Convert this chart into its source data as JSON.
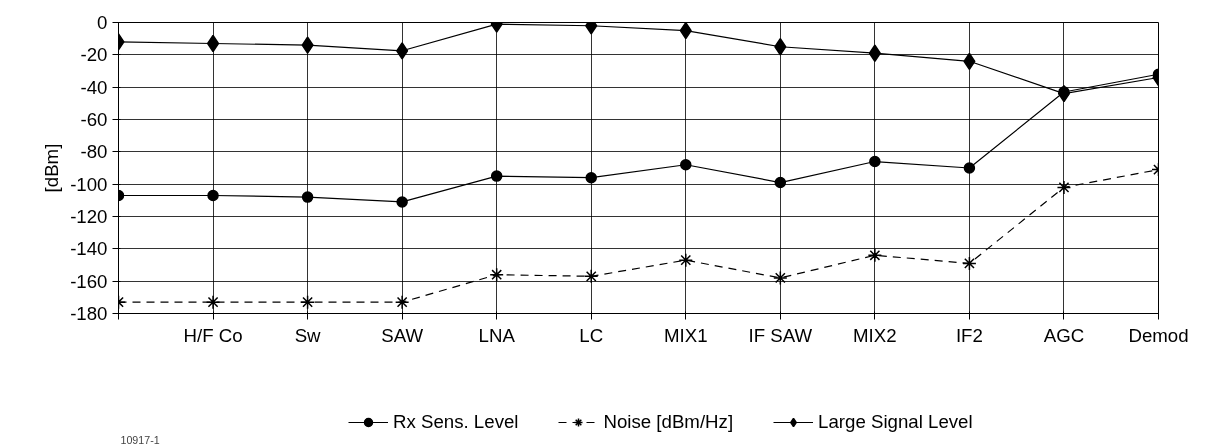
{
  "chart_data": {
    "type": "line",
    "ylabel": "[dBm]",
    "categories": [
      null,
      "H/F Co",
      "Sw",
      "SAW",
      "LNA",
      "LC",
      "MIX1",
      "IF SAW",
      "MIX2",
      "IF2",
      "AGC",
      "Demod"
    ],
    "series": [
      {
        "name": "Rx Sens. Level",
        "color": "#000000",
        "marker": "circle",
        "line_style": "solid",
        "values": [
          -107,
          -107,
          -108,
          -111,
          -95,
          -96,
          -88,
          -99,
          -86,
          -90,
          -43,
          -32
        ]
      },
      {
        "name": "Noise [dBm/Hz]",
        "color": "#000000",
        "marker": "cross",
        "line_style": "dashed",
        "values": [
          -173,
          -173,
          -173,
          -173,
          -156,
          -157,
          -147,
          -158,
          -144,
          -149,
          -102,
          -91
        ]
      },
      {
        "name": "Large Signal Level",
        "color": "#000000",
        "marker": "diamond",
        "line_style": "solid",
        "values": [
          -12,
          -13,
          -14,
          -17.5,
          -1,
          -2,
          -5,
          -15,
          -19,
          -24,
          -44,
          -34
        ]
      }
    ],
    "ylim": [
      -180,
      0
    ],
    "yticks": [
      -180,
      -160,
      -140,
      -120,
      -100,
      -80,
      -60,
      -40,
      -20,
      0
    ],
    "grid": true,
    "legend": "bottom",
    "annotations": [
      "10917-1"
    ]
  }
}
